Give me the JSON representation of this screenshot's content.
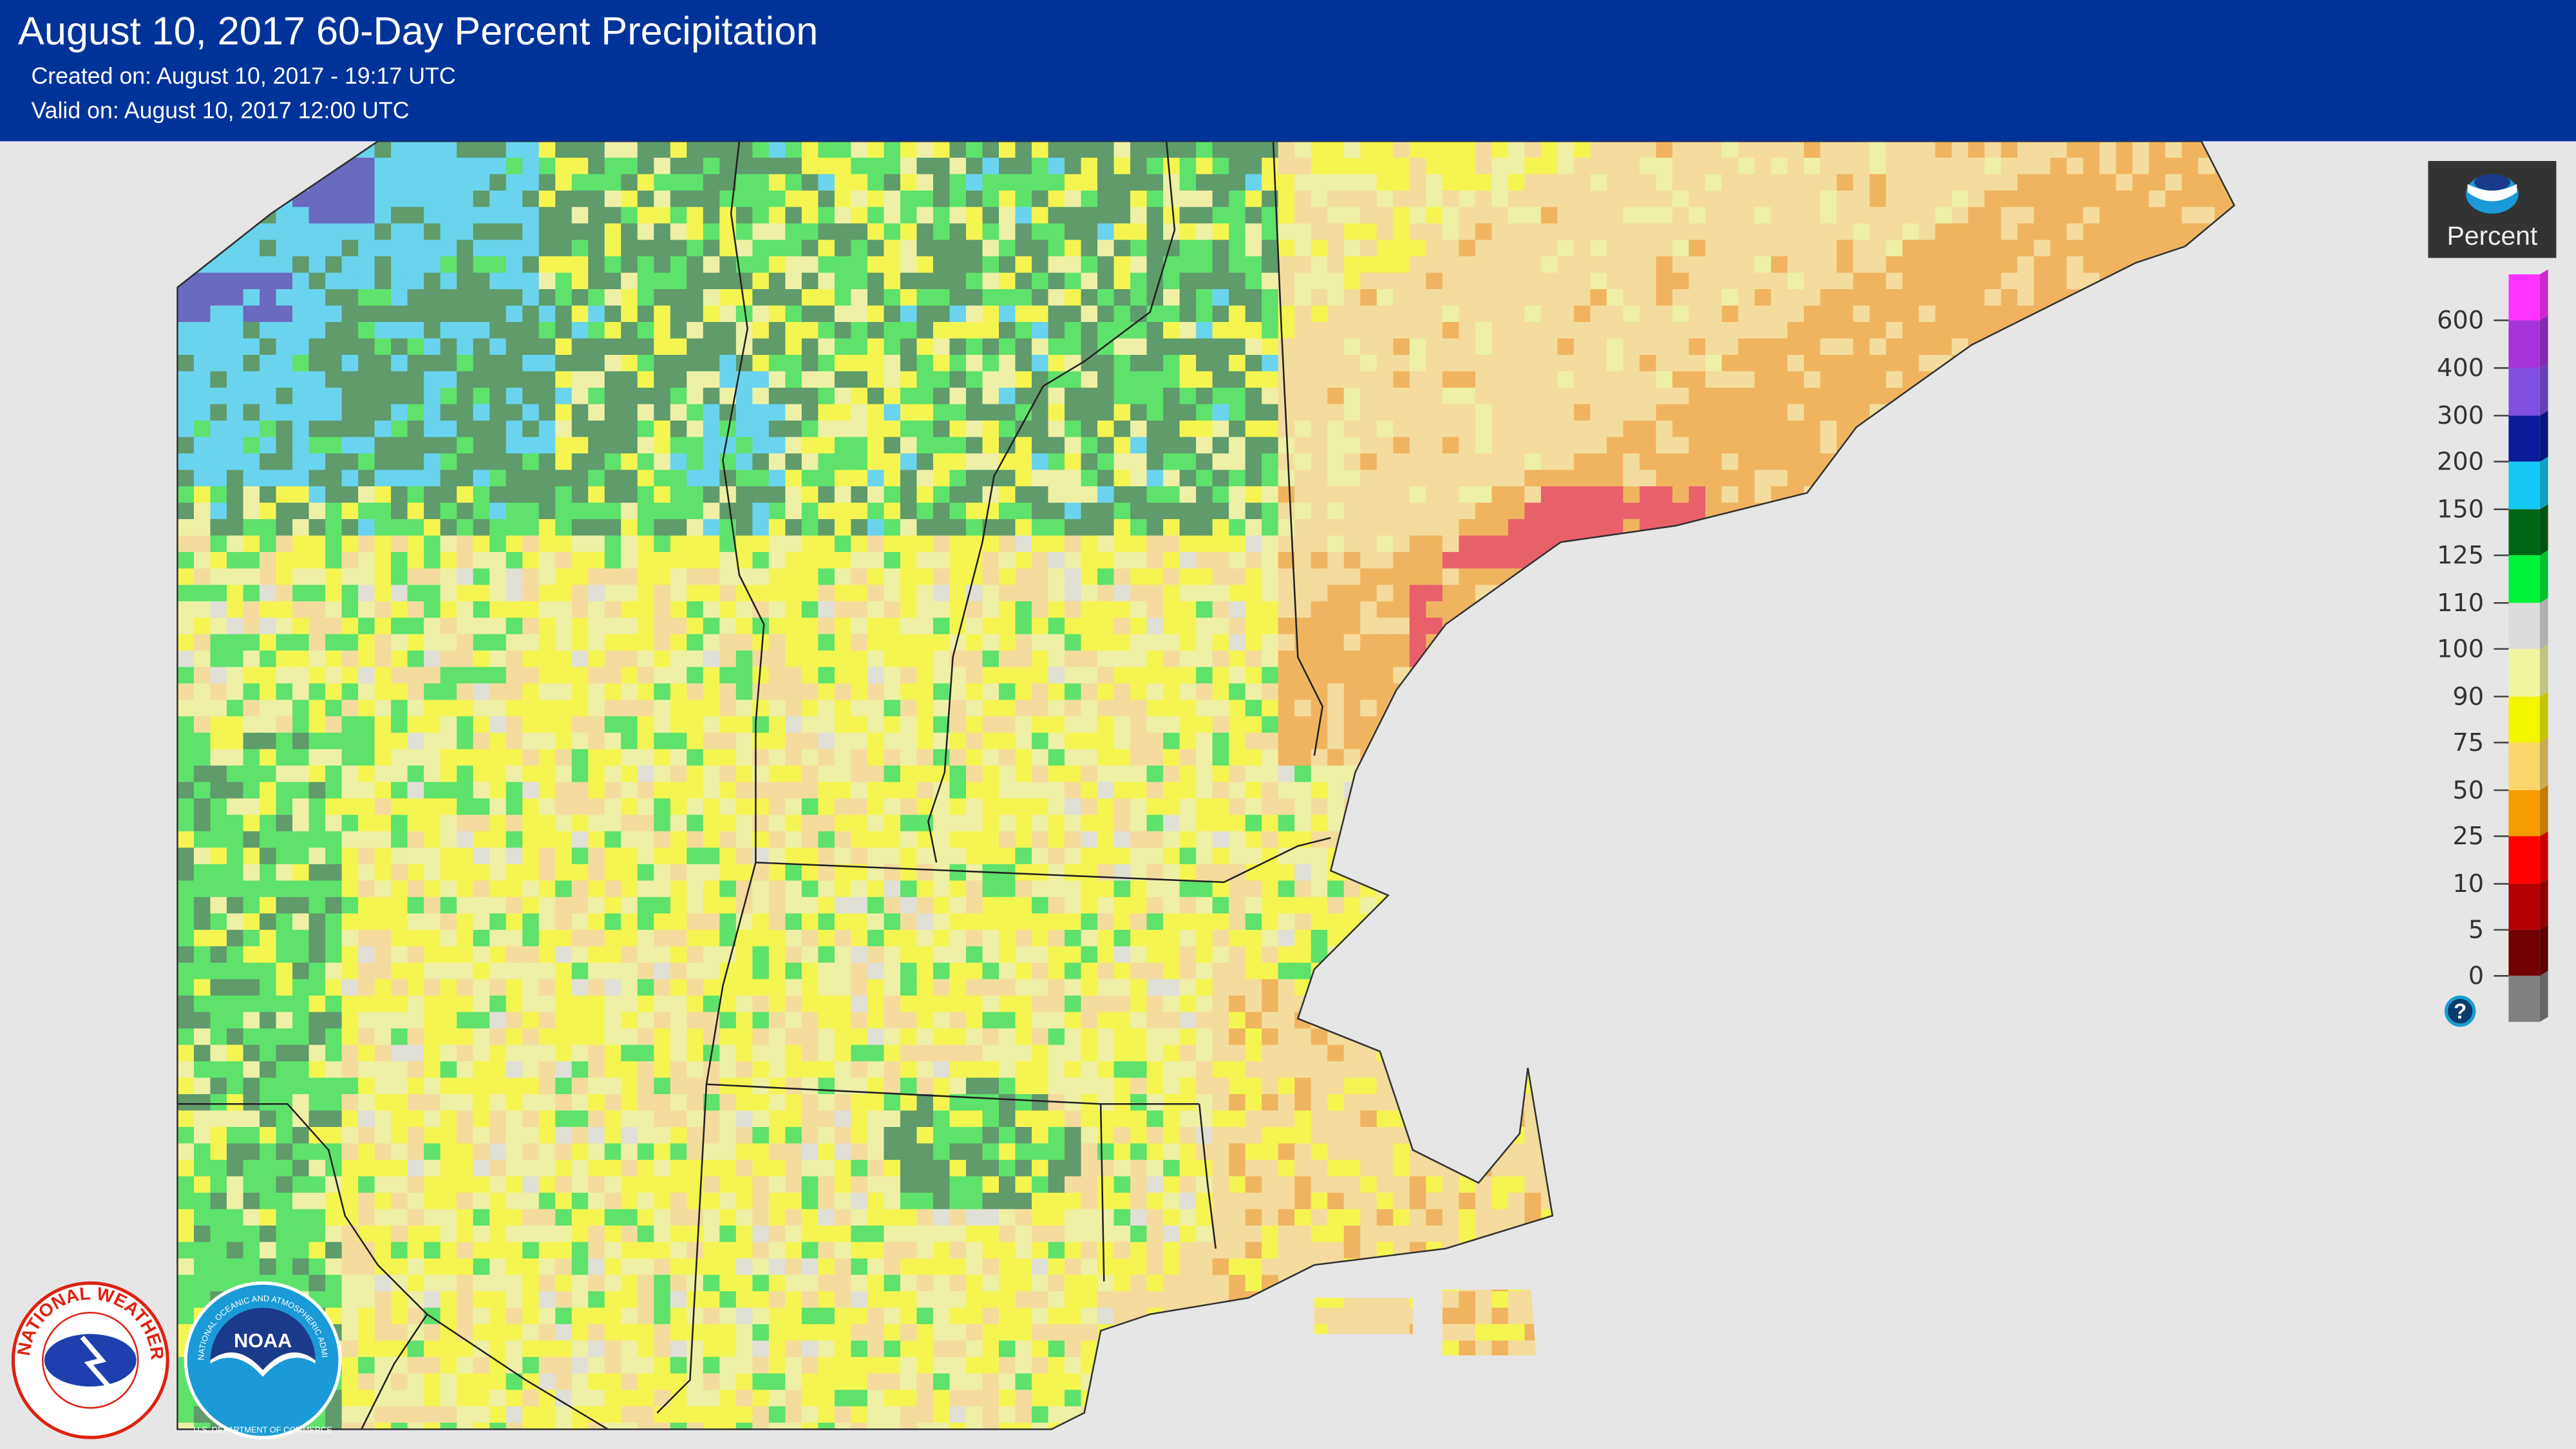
{
  "header": {
    "title": "August 10, 2017 60-Day Percent Precipitation",
    "created": "Created on: August 10, 2017 - 19:17 UTC",
    "valid": "Valid on: August 10, 2017 12:00 UTC"
  },
  "legend": {
    "title": "Percent",
    "labels": [
      "600",
      "400",
      "300",
      "200",
      "150",
      "125",
      "110",
      "100",
      "90",
      "75",
      "50",
      "25",
      "10",
      "5",
      "0"
    ],
    "colors": [
      "#ff33ff",
      "#a633d9",
      "#7f4fe0",
      "#0a1a99",
      "#14c8f5",
      "#006614",
      "#00f23a",
      "#dcdcdc",
      "#f0f5a0",
      "#f5f500",
      "#fcd66a",
      "#f59c00",
      "#ff0000",
      "#b30000",
      "#730000",
      "#808080"
    ],
    "help": "?"
  },
  "map_palette": {
    "blue": "#6ad4ef",
    "purple": "#6a6abf",
    "dark_green": "#5f9b6b",
    "green": "#5ee26c",
    "yellow": "#f5f552",
    "light_yellow": "#eef0a6",
    "gray": "#e0e0d6",
    "tan": "#f4dc9e",
    "orange": "#f0b460",
    "red": "#e8606a"
  },
  "logos": {
    "nws": "NATIONAL WEATHER SERVICE",
    "noaa": "NOAA",
    "noaa_ring": "NATIONAL OCEANIC AND ATMOSPHERIC ADMINISTRATION",
    "doc_ring": "U.S. DEPARTMENT OF COMMERCE"
  }
}
